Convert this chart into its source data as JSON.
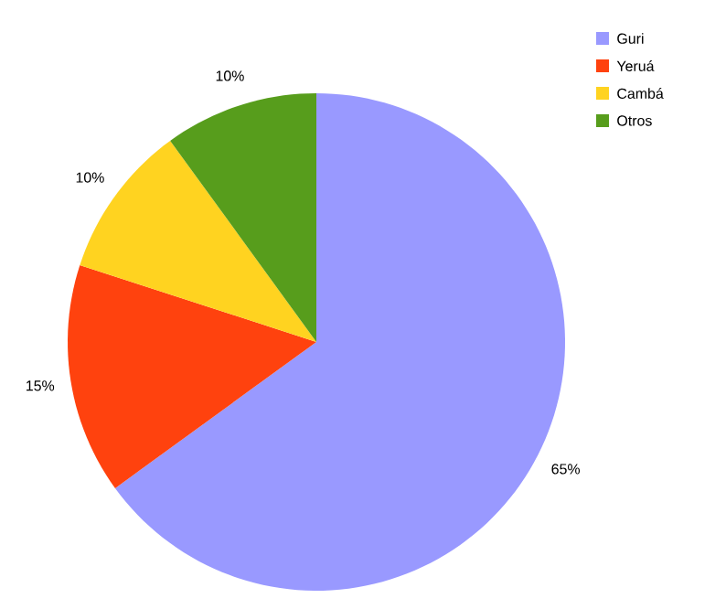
{
  "chart_data": {
    "type": "pie",
    "categories": [
      "Guri",
      "Yeruá",
      "Cambá",
      "Otros"
    ],
    "values": [
      65,
      15,
      10,
      10
    ],
    "colors": [
      "#9999ff",
      "#ff420e",
      "#ffd320",
      "#579d1c"
    ],
    "value_labels": [
      "65%",
      "15%",
      "10%",
      "10%"
    ],
    "legend": "top right"
  }
}
